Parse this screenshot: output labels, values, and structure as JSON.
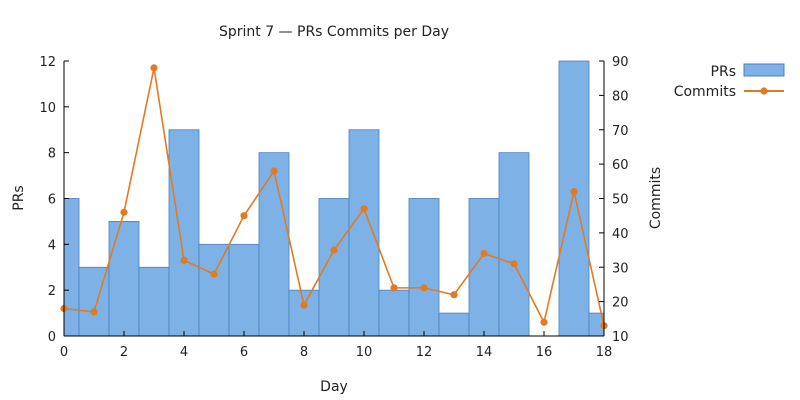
{
  "chart_data": {
    "type": "bar",
    "title": "Sprint 7 — PRs  Commits per Day",
    "xlabel": "Day",
    "ylabel": "PRs",
    "y2label": "Commits",
    "xlim": [
      0,
      18
    ],
    "ylim": [
      0,
      12
    ],
    "y2lim": [
      10,
      90
    ],
    "x_ticks": [
      0,
      2,
      4,
      6,
      8,
      10,
      12,
      14,
      16,
      18
    ],
    "y_ticks": [
      0,
      2,
      4,
      6,
      8,
      10,
      12
    ],
    "y2_ticks": [
      10,
      20,
      30,
      40,
      50,
      60,
      70,
      80,
      90
    ],
    "grid": false,
    "legend_position": "top-right",
    "x": [
      0,
      1,
      2,
      3,
      4,
      5,
      6,
      7,
      8,
      9,
      10,
      11,
      12,
      13,
      14,
      15,
      16,
      17,
      18
    ],
    "series": [
      {
        "name": "PRs",
        "type": "bar",
        "axis": "left",
        "color": "#7eb2e6",
        "edge_color": "#4a7fc0",
        "values": [
          6,
          3,
          5,
          3,
          9,
          4,
          4,
          8,
          2,
          6,
          9,
          2,
          6,
          1,
          6,
          8,
          0,
          12,
          1
        ]
      },
      {
        "name": "Commits",
        "type": "line",
        "axis": "right",
        "color": "#e07b22",
        "values": [
          18,
          17,
          46,
          88,
          32,
          28,
          45,
          58,
          19,
          35,
          47,
          24,
          24,
          22,
          34,
          31,
          14,
          52,
          13
        ]
      }
    ]
  }
}
